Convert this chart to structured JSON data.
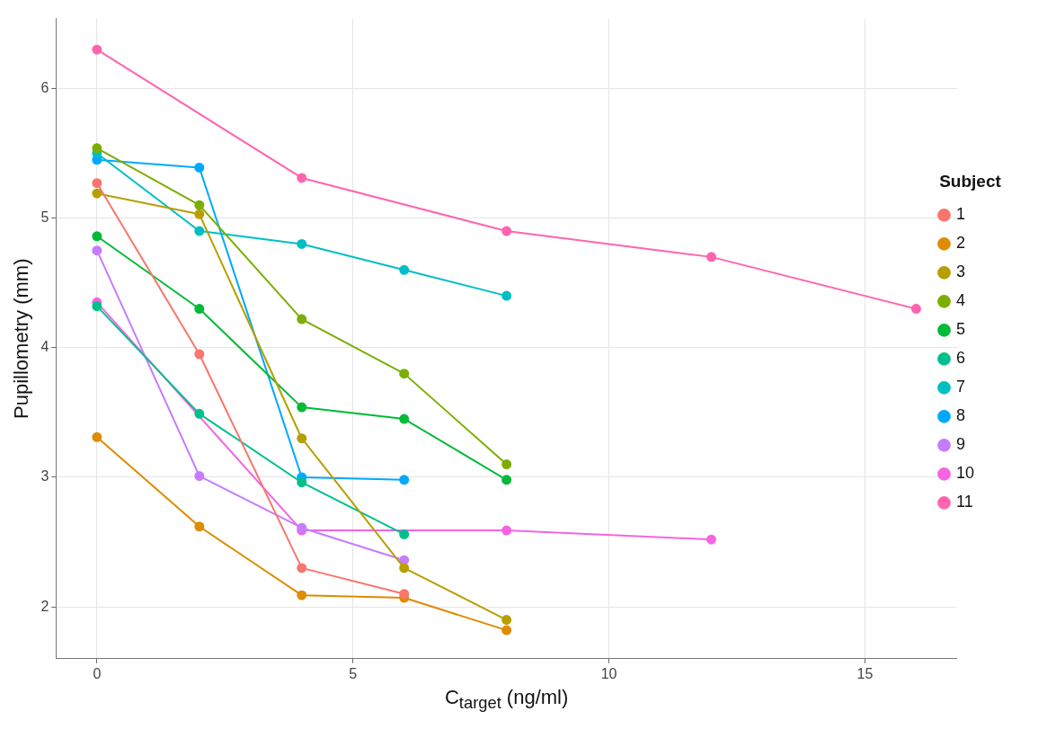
{
  "chart_data": {
    "type": "line",
    "xlabel": "C$_{target}$  (ng/ml)",
    "ylabel": "Pupillometry (mm)",
    "legend_title": "Subject",
    "legend": "right",
    "grid": true,
    "marker": "circle",
    "line_style": "solid",
    "xlim": [
      -0.8,
      16.8
    ],
    "xticks": [
      0,
      5,
      10,
      15
    ],
    "ylim": [
      1.6,
      6.54
    ],
    "yticks": [
      2,
      3,
      4,
      5,
      6
    ],
    "series": [
      {
        "name": "1",
        "color": "#f8766d",
        "x": [
          0,
          2,
          4,
          6
        ],
        "values": [
          5.27,
          3.95,
          2.3,
          2.1
        ]
      },
      {
        "name": "2",
        "color": "#de8c00",
        "x": [
          0,
          2,
          4,
          6,
          8
        ],
        "values": [
          3.31,
          2.62,
          2.09,
          2.07,
          1.82
        ]
      },
      {
        "name": "3",
        "color": "#b79f00",
        "x": [
          0,
          2,
          4,
          6,
          8
        ],
        "values": [
          5.19,
          5.03,
          3.3,
          2.3,
          1.9
        ]
      },
      {
        "name": "4",
        "color": "#7cae00",
        "x": [
          0,
          2,
          4,
          6,
          8
        ],
        "values": [
          5.54,
          5.1,
          4.22,
          3.8,
          3.1
        ]
      },
      {
        "name": "5",
        "color": "#00ba38",
        "x": [
          0,
          2,
          4,
          6,
          8
        ],
        "values": [
          4.86,
          4.3,
          3.54,
          3.45,
          2.98
        ]
      },
      {
        "name": "6",
        "color": "#00c08b",
        "x": [
          0,
          2,
          4,
          6
        ],
        "values": [
          4.32,
          3.49,
          2.96,
          2.56
        ]
      },
      {
        "name": "7",
        "color": "#00bfc4",
        "x": [
          0,
          2,
          4,
          6,
          8
        ],
        "values": [
          5.5,
          4.9,
          4.8,
          4.6,
          4.4
        ]
      },
      {
        "name": "8",
        "color": "#00a9ff",
        "x": [
          0,
          2,
          4,
          6
        ],
        "values": [
          5.45,
          5.39,
          3.0,
          2.98
        ]
      },
      {
        "name": "9",
        "color": "#c77cff",
        "x": [
          0,
          2,
          4,
          6
        ],
        "values": [
          4.75,
          3.01,
          2.61,
          2.36
        ]
      },
      {
        "name": "10",
        "color": "#f564e3",
        "x": [
          0,
          4,
          8,
          12
        ],
        "values": [
          4.35,
          2.59,
          2.59,
          2.52
        ]
      },
      {
        "name": "11",
        "color": "#ff64b0",
        "x": [
          0,
          4,
          8,
          12,
          16
        ],
        "values": [
          6.3,
          5.31,
          4.9,
          4.7,
          4.3
        ]
      }
    ]
  }
}
